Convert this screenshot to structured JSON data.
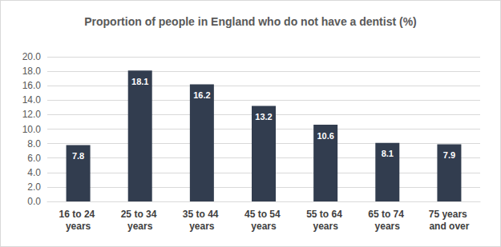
{
  "chart_data": {
    "type": "bar",
    "title": "Proportion of people in England who do not have a dentist (%)",
    "categories": [
      "16 to 24 years",
      "25 to 34 years",
      "35 to 44 years",
      "45 to 54 years",
      "55 to 64 years",
      "65 to 74 years",
      "75 years and over"
    ],
    "values": [
      7.8,
      18.1,
      16.2,
      13.2,
      10.6,
      8.1,
      7.9
    ],
    "color": "#323d4f",
    "ylim": [
      0,
      20
    ],
    "yticks": [
      {
        "value": 0,
        "label": "0.0"
      },
      {
        "value": 2,
        "label": "2.0"
      },
      {
        "value": 4,
        "label": "4.0"
      },
      {
        "value": 6,
        "label": "6.0"
      },
      {
        "value": 8,
        "label": "8.0"
      },
      {
        "value": 10,
        "label": "10.0"
      },
      {
        "value": 12,
        "label": "12.0"
      },
      {
        "value": 14,
        "label": "14.0"
      },
      {
        "value": 16,
        "label": "16.0"
      },
      {
        "value": 18,
        "label": "18.0"
      },
      {
        "value": 20,
        "label": "20.0"
      }
    ],
    "grid": true,
    "data_labels": true
  }
}
